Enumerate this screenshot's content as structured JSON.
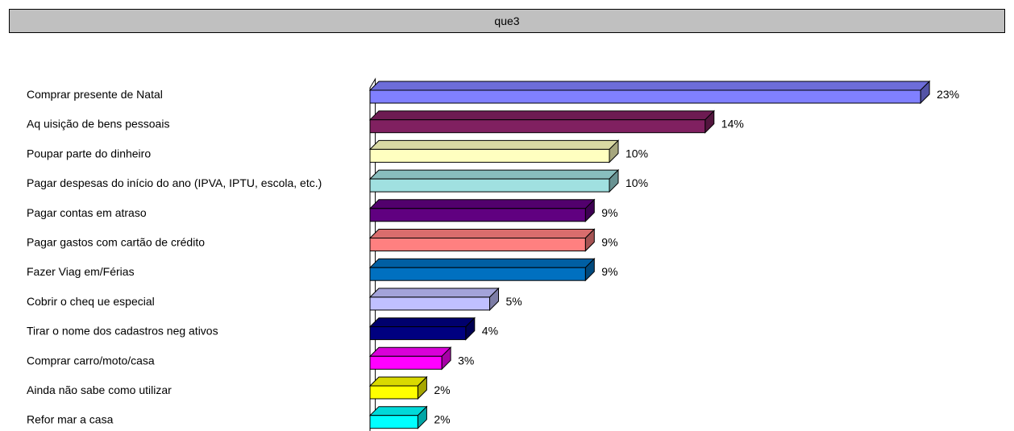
{
  "title": "que3",
  "chart_data": {
    "type": "bar",
    "orientation": "horizontal",
    "style": "3d",
    "categories": [
      "Comprar presente de Natal",
      "Aq uisição de bens pessoais",
      "Poupar parte do dinheiro",
      "Pagar despesas do início do ano (IPVA, IPTU, escola, etc.)",
      "Pagar contas em atraso",
      "Pagar gastos com cartão de crédito",
      "Fazer Viag em/Férias",
      "Cobrir o cheq ue especial",
      "Tirar o nome dos cadastros neg ativos",
      "Comprar carro/moto/casa",
      "Ainda não sabe como utilizar",
      "Refor mar a casa"
    ],
    "values": [
      23,
      14,
      10,
      10,
      9,
      9,
      9,
      5,
      4,
      3,
      2,
      2
    ],
    "value_labels": [
      "23%",
      "14%",
      "10%",
      "10%",
      "9%",
      "9%",
      "9%",
      "5%",
      "4%",
      "3%",
      "2%",
      "2%"
    ],
    "colors": [
      "#8080ff",
      "#802060",
      "#ffffc0",
      "#a0e0e0",
      "#600080",
      "#ff8080",
      "#0070c0",
      "#c0c0ff",
      "#000080",
      "#ff00ff",
      "#ffff00",
      "#00ffff"
    ],
    "unit": "%",
    "grid": false,
    "legend": "none"
  }
}
